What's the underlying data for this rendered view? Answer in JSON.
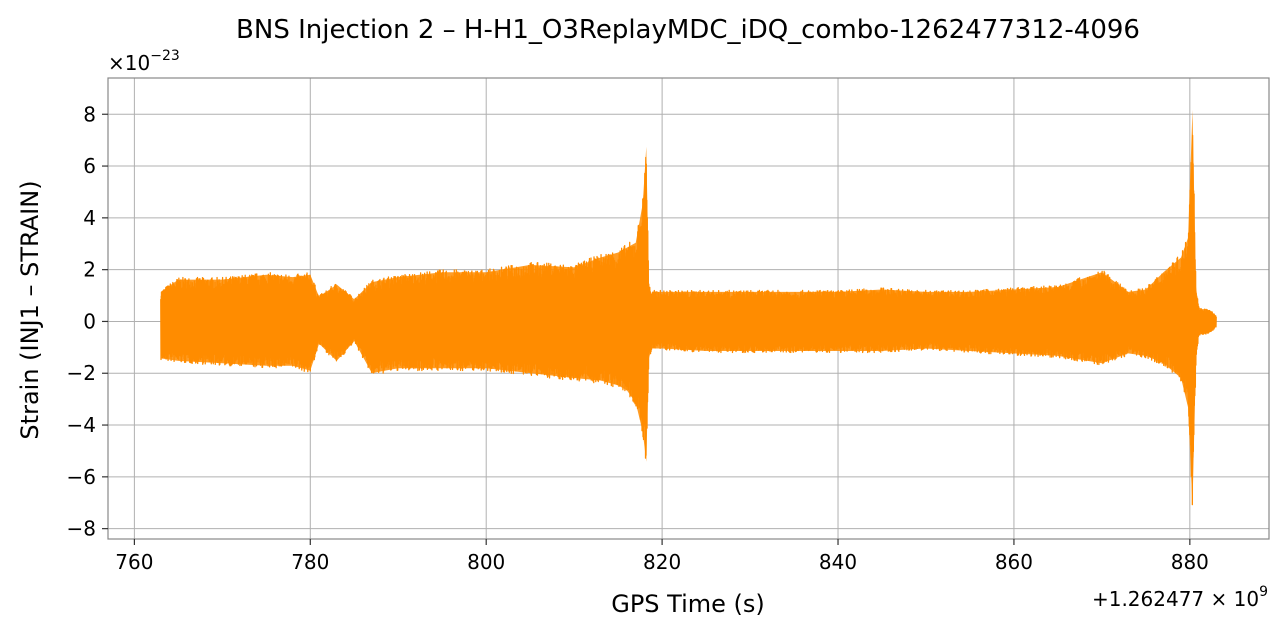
{
  "chart_data": {
    "type": "line",
    "title": "BNS Injection 2 – H-H1_O3ReplayMDC_iDQ_combo-1262477312-4096",
    "xlabel": "GPS Time (s)",
    "ylabel": "Strain (INJ1 – STRAIN)",
    "x_offset_label": "+1.262477 × 10",
    "x_offset_exponent": "9",
    "y_multiplier_label": "×10",
    "y_multiplier_exponent": "−23",
    "xlim": [
      757,
      889
    ],
    "ylim": [
      -8.4,
      9.4
    ],
    "x_ticks": [
      760,
      780,
      800,
      820,
      840,
      860,
      880
    ],
    "x_tick_labels": [
      "760",
      "780",
      "800",
      "820",
      "840",
      "860",
      "880"
    ],
    "y_ticks": [
      -8,
      -6,
      -4,
      -2,
      0,
      2,
      4,
      6,
      8
    ],
    "y_tick_labels": [
      "−8",
      "−6",
      "−4",
      "−2",
      "0",
      "2",
      "4",
      "6",
      "8"
    ],
    "grid": true,
    "series": [
      {
        "color": "#ff8c00",
        "envelope": {
          "x": [
            763,
            765,
            770,
            775,
            778,
            780,
            781,
            783,
            785,
            787,
            790,
            795,
            800,
            805,
            810,
            813,
            815,
            816,
            817,
            817.8,
            818.2,
            818.5,
            818.8,
            819,
            820,
            825,
            830,
            835,
            840,
            845,
            850,
            855,
            860,
            865,
            870,
            873,
            875,
            877,
            878,
            879,
            879.8,
            880.3,
            880.7,
            881,
            881.3,
            881.8,
            882.5,
            883
          ],
          "upper": [
            1.2,
            1.7,
            1.7,
            1.9,
            1.8,
            1.9,
            1.0,
            1.5,
            0.9,
            1.6,
            1.8,
            2.0,
            2.0,
            2.3,
            2.2,
            2.6,
            2.8,
            3.0,
            3.2,
            4.8,
            7.1,
            1.5,
            1.1,
            1.2,
            1.2,
            1.2,
            1.2,
            1.2,
            1.2,
            1.3,
            1.2,
            1.2,
            1.3,
            1.4,
            2.0,
            1.2,
            1.3,
            2.0,
            2.3,
            2.6,
            3.4,
            8.6,
            1.4,
            0.6,
            0.5,
            0.5,
            0.4,
            0.2
          ],
          "lower": [
            -1.5,
            -1.6,
            -1.7,
            -1.8,
            -1.8,
            -2.0,
            -0.9,
            -1.6,
            -0.8,
            -2.1,
            -1.9,
            -1.9,
            -1.9,
            -2.1,
            -2.3,
            -2.4,
            -2.6,
            -2.8,
            -3.3,
            -4.5,
            -5.7,
            -1.5,
            -1.1,
            -1.1,
            -1.1,
            -1.2,
            -1.2,
            -1.2,
            -1.2,
            -1.2,
            -1.1,
            -1.2,
            -1.3,
            -1.4,
            -1.7,
            -1.3,
            -1.4,
            -1.7,
            -2.0,
            -2.3,
            -3.5,
            -7.5,
            -1.5,
            -0.6,
            -0.5,
            -0.5,
            -0.4,
            -0.2
          ]
        }
      }
    ]
  }
}
